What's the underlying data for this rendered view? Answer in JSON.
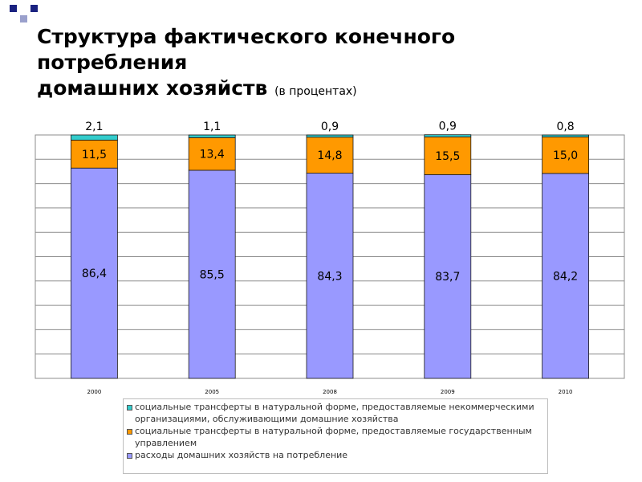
{
  "slide": {
    "title_line1": "Структура фактического конечного",
    "title_line2": "потребления",
    "title_line3": "домашних хозяйств",
    "title_note": "(в процентах)",
    "accent_colors": [
      "#1a2280",
      "#9aa0cc"
    ]
  },
  "chart_data": {
    "type": "bar",
    "stacked": true,
    "categories": [
      "2000",
      "2005",
      "2008",
      "2009",
      "2010"
    ],
    "series": [
      {
        "name": "расходы домашних хозяйств на потребление",
        "color": "#9999ff",
        "values": [
          86.4,
          85.5,
          84.3,
          83.7,
          84.2
        ]
      },
      {
        "name": "социальные трансферты в натуральной форме, предоставляемые государственным управлением",
        "color": "#ff9900",
        "values": [
          11.5,
          13.4,
          14.8,
          15.5,
          15.0
        ]
      },
      {
        "name": "социальные трансферты в натуральной форме, предоставляемые некоммерческими организациями, обслуживающими домашние хозяйства",
        "color": "#33cccc",
        "values": [
          2.1,
          1.1,
          0.9,
          0.9,
          0.8
        ]
      }
    ],
    "data_labels": {
      "bottom": [
        "86,4",
        "85,5",
        "84,3",
        "83,7",
        "84,2"
      ],
      "middle": [
        "11,5",
        "13,4",
        "14,8",
        "15,5",
        "15,0"
      ],
      "top": [
        "2,1",
        "1,1",
        "0,9",
        "0,9",
        "0,8"
      ]
    },
    "ylim": [
      0,
      100
    ],
    "grid": true,
    "legend_position": "bottom"
  },
  "legend": {
    "items": [
      {
        "label": "социальные трансферты в натуральной форме, предоставляемые некоммерческими организациями, обслуживающими домашние хозяйства",
        "color": "#33cccc"
      },
      {
        "label": "социальные трансферты в натуральной форме, предоставляемые государственным управлением",
        "color": "#ff9900"
      },
      {
        "label": "расходы домашних хозяйств на потребление",
        "color": "#9999ff"
      }
    ]
  }
}
